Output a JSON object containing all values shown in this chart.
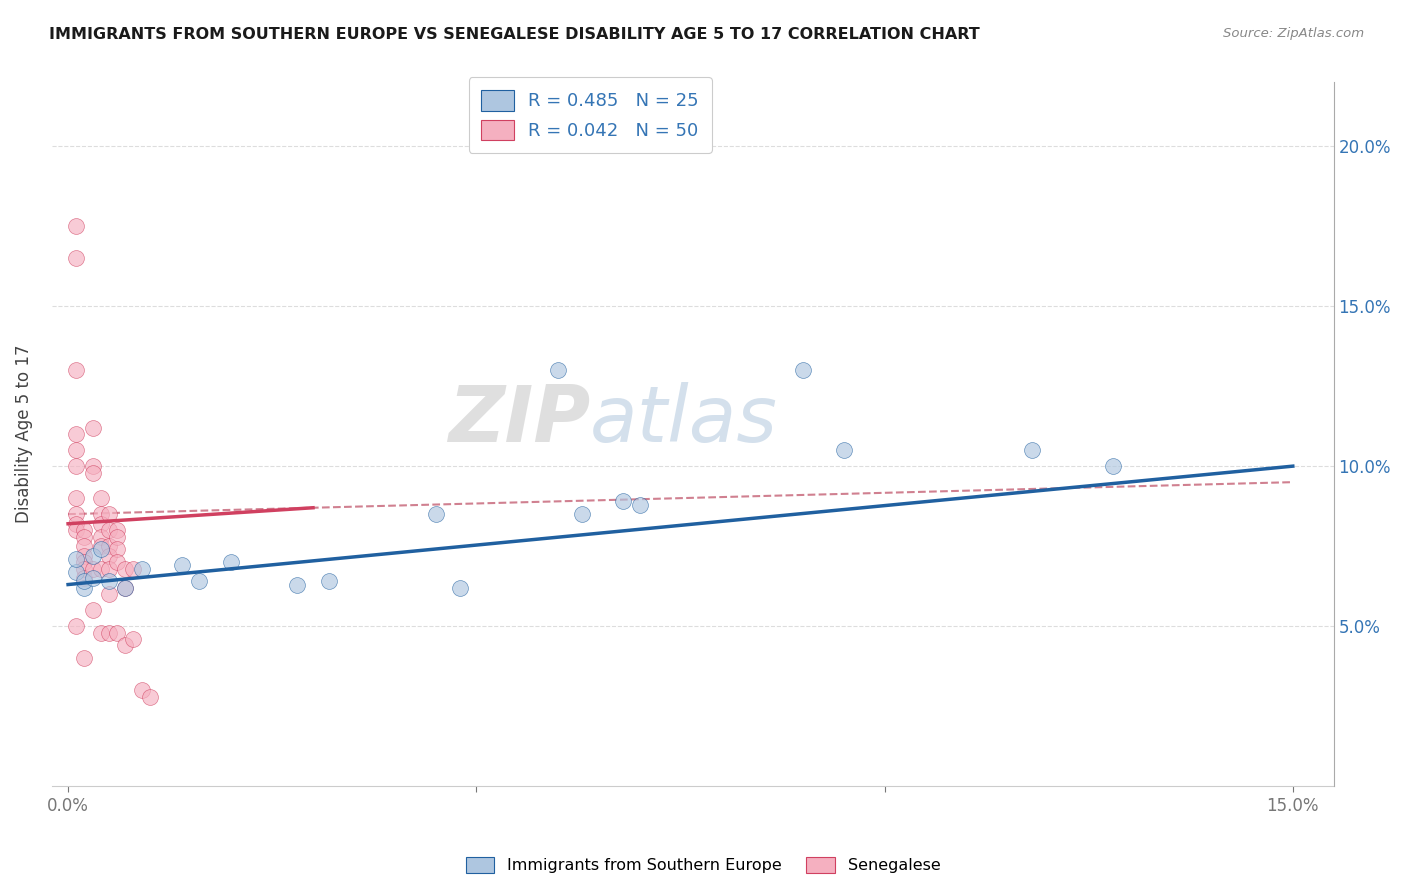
{
  "title": "IMMIGRANTS FROM SOUTHERN EUROPE VS SENEGALESE DISABILITY AGE 5 TO 17 CORRELATION CHART",
  "source": "Source: ZipAtlas.com",
  "ylabel": "Disability Age 5 to 17",
  "legend_label_blue": "Immigrants from Southern Europe",
  "legend_label_pink": "Senegalese",
  "blue_R": 0.485,
  "blue_N": 25,
  "pink_R": 0.042,
  "pink_N": 50,
  "blue_color": "#aec6e0",
  "pink_color": "#f5b0c0",
  "blue_line_color": "#2060a0",
  "pink_line_color": "#d04060",
  "dashed_color": "#d08090",
  "watermark_zip": "ZIP",
  "watermark_atlas": "atlas",
  "xlim": [
    -0.002,
    0.155
  ],
  "ylim": [
    0.0,
    0.22
  ],
  "blue_points_x": [
    0.001,
    0.001,
    0.002,
    0.002,
    0.003,
    0.003,
    0.004,
    0.005,
    0.007,
    0.009,
    0.014,
    0.016,
    0.02,
    0.028,
    0.032,
    0.045,
    0.048,
    0.06,
    0.063,
    0.068,
    0.07,
    0.09,
    0.095,
    0.118,
    0.128
  ],
  "blue_points_y": [
    0.067,
    0.071,
    0.062,
    0.064,
    0.072,
    0.065,
    0.074,
    0.064,
    0.062,
    0.068,
    0.069,
    0.064,
    0.07,
    0.063,
    0.064,
    0.085,
    0.062,
    0.13,
    0.085,
    0.089,
    0.088,
    0.13,
    0.105,
    0.105,
    0.1
  ],
  "pink_points_x": [
    0.001,
    0.001,
    0.001,
    0.001,
    0.001,
    0.001,
    0.001,
    0.001,
    0.001,
    0.001,
    0.001,
    0.002,
    0.002,
    0.002,
    0.002,
    0.002,
    0.002,
    0.002,
    0.002,
    0.003,
    0.003,
    0.003,
    0.003,
    0.003,
    0.004,
    0.004,
    0.004,
    0.004,
    0.004,
    0.004,
    0.004,
    0.005,
    0.005,
    0.005,
    0.005,
    0.005,
    0.005,
    0.005,
    0.006,
    0.006,
    0.006,
    0.006,
    0.006,
    0.007,
    0.007,
    0.007,
    0.008,
    0.008,
    0.009,
    0.01
  ],
  "pink_points_y": [
    0.175,
    0.165,
    0.13,
    0.11,
    0.105,
    0.1,
    0.09,
    0.085,
    0.082,
    0.08,
    0.05,
    0.08,
    0.078,
    0.075,
    0.072,
    0.07,
    0.068,
    0.065,
    0.04,
    0.112,
    0.1,
    0.098,
    0.068,
    0.055,
    0.09,
    0.085,
    0.082,
    0.078,
    0.075,
    0.068,
    0.048,
    0.085,
    0.08,
    0.075,
    0.072,
    0.068,
    0.06,
    0.048,
    0.08,
    0.078,
    0.074,
    0.07,
    0.048,
    0.068,
    0.062,
    0.044,
    0.068,
    0.046,
    0.03,
    0.028
  ]
}
